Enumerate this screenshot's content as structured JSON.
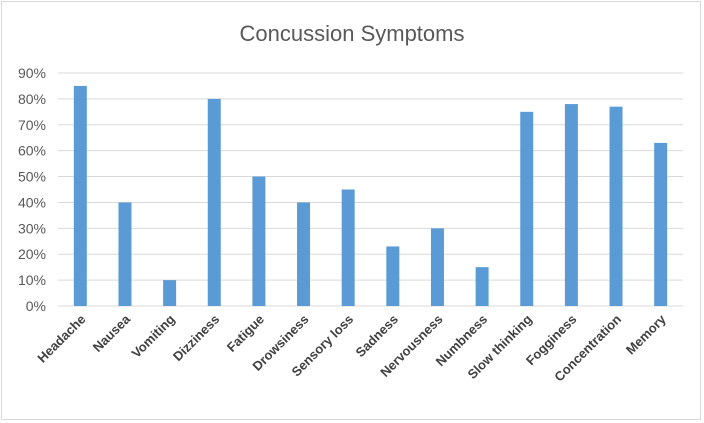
{
  "chart_data": {
    "type": "bar",
    "title": "Concussion Symptoms",
    "xlabel": "",
    "ylabel": "",
    "categories": [
      "Headache",
      "Nausea",
      "Vomiting",
      "Dizziness",
      "Fatigue",
      "Drowsiness",
      "Sensory loss",
      "Sadness",
      "Nervousness",
      "Numbness",
      "Slow thinking",
      "Fogginess",
      "Concentration",
      "Memory"
    ],
    "values": [
      85,
      40,
      10,
      80,
      50,
      40,
      45,
      23,
      30,
      15,
      75,
      78,
      77,
      63
    ],
    "ylim": [
      0,
      90
    ],
    "yticks": [
      "0%",
      "10%",
      "20%",
      "30%",
      "40%",
      "50%",
      "60%",
      "70%",
      "80%",
      "90%"
    ],
    "grid": true,
    "legend": "none",
    "bar_color": "#5b9bd5"
  }
}
